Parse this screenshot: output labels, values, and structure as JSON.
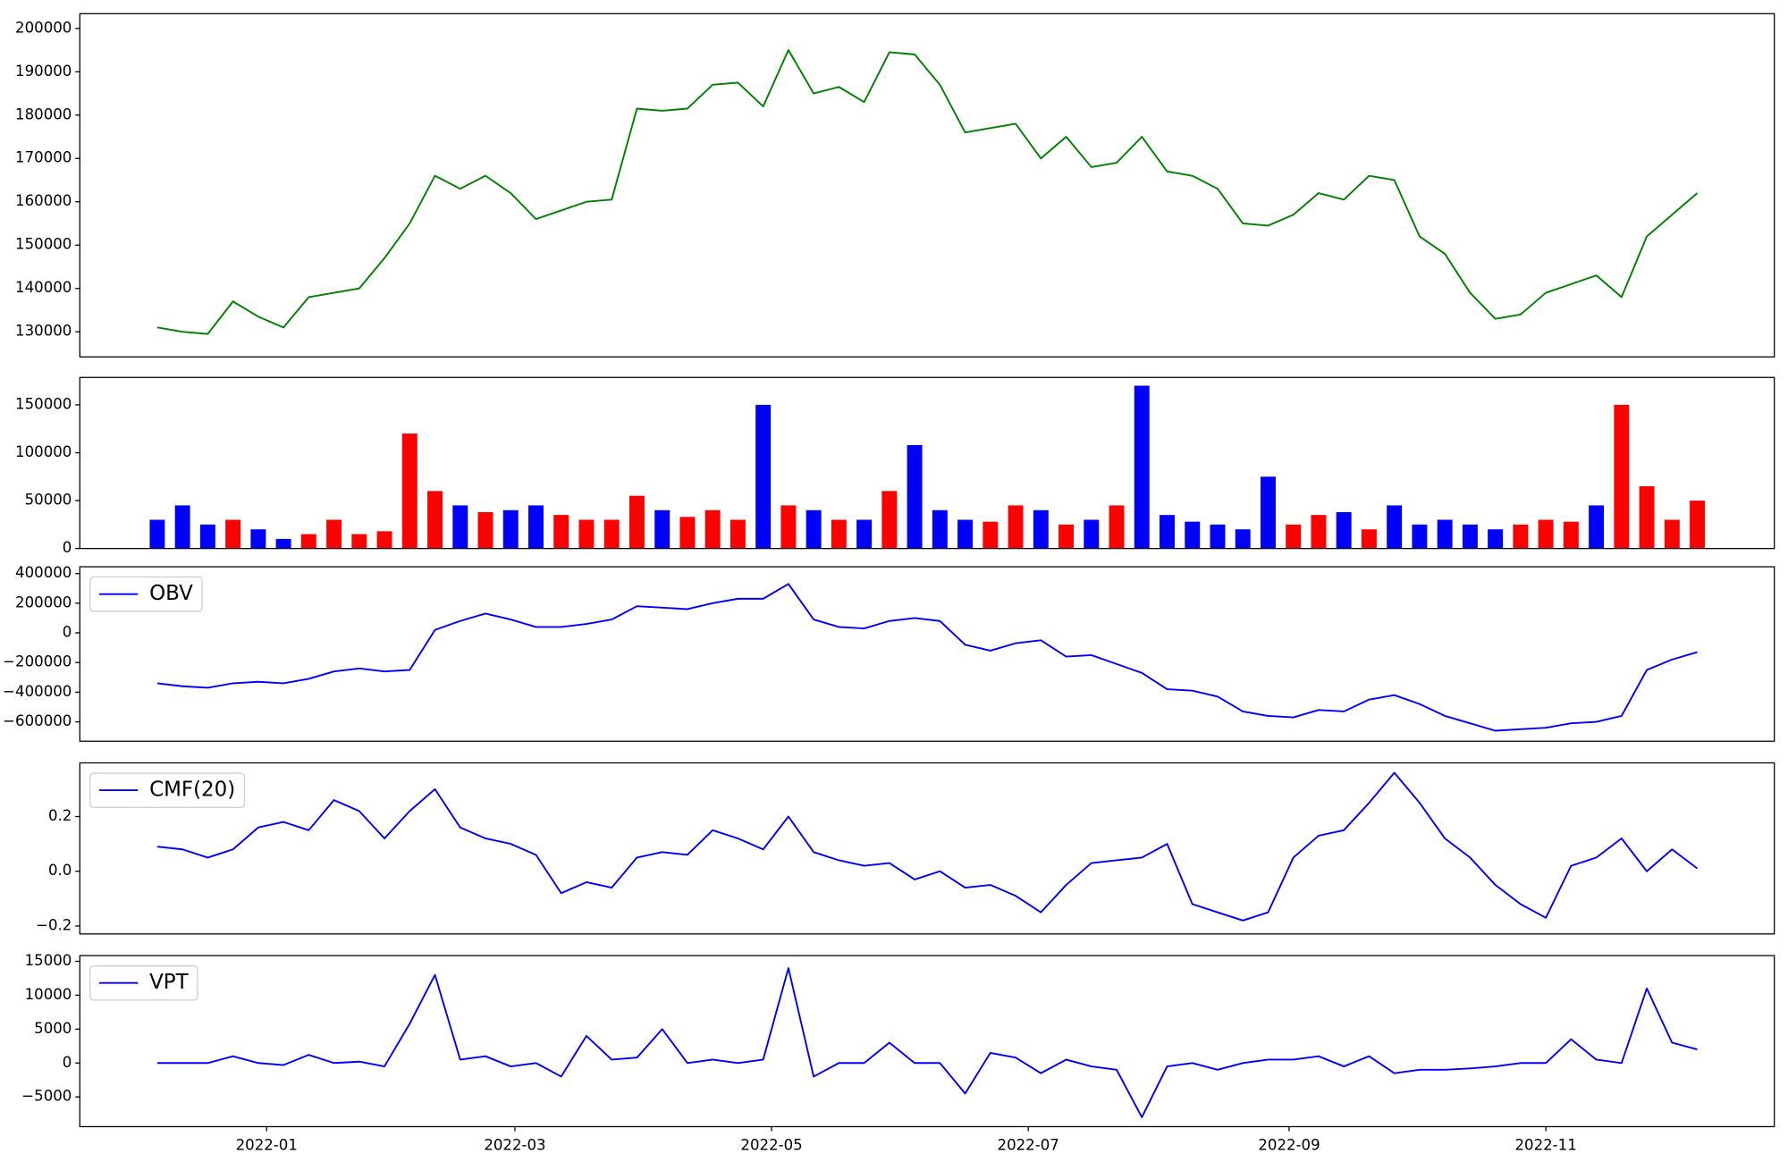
{
  "chart_data": [
    {
      "type": "line",
      "color": "green",
      "x": [
        0,
        6,
        12,
        18,
        24,
        30,
        36,
        42,
        48,
        54,
        60,
        66,
        72,
        78,
        84,
        90,
        96,
        102,
        108,
        114,
        120,
        126,
        132,
        138,
        144,
        150,
        156,
        162,
        168,
        174,
        180,
        186,
        192,
        198,
        204,
        210,
        216,
        222,
        228,
        234,
        240,
        246,
        252,
        258,
        264,
        270,
        276,
        282,
        288,
        294,
        300,
        306,
        312,
        318,
        324,
        330,
        336,
        342,
        348,
        354,
        360,
        366
      ],
      "values": [
        131000,
        130000,
        129500,
        137000,
        133500,
        131000,
        138000,
        139000,
        140000,
        147000,
        155000,
        166000,
        163000,
        166000,
        162000,
        156000,
        158000,
        160000,
        160500,
        181500,
        181000,
        181500,
        187000,
        187500,
        182000,
        195000,
        185000,
        186500,
        183000,
        194500,
        194000,
        187000,
        176000,
        177000,
        178000,
        170000,
        175000,
        168000,
        169000,
        175000,
        167000,
        166000,
        163000,
        155000,
        154500,
        157000,
        162000,
        160500,
        166000,
        165000,
        152000,
        148000,
        139000,
        133000,
        134000,
        139000,
        141000,
        143000,
        138000,
        152000,
        157000,
        162000
      ],
      "xlim": [
        -18.4,
        384.3
      ],
      "ylim": [
        124200,
        203400
      ],
      "yticks": [
        130000,
        140000,
        150000,
        160000,
        170000,
        180000,
        190000,
        200000
      ]
    },
    {
      "type": "bar",
      "x": [
        0,
        6,
        12,
        18,
        24,
        30,
        36,
        42,
        48,
        54,
        60,
        66,
        72,
        78,
        84,
        90,
        96,
        102,
        108,
        114,
        120,
        126,
        132,
        138,
        144,
        150,
        156,
        162,
        168,
        174,
        180,
        186,
        192,
        198,
        204,
        210,
        216,
        222,
        228,
        234,
        240,
        246,
        252,
        258,
        264,
        270,
        276,
        282,
        288,
        294,
        300,
        306,
        312,
        318,
        324,
        330,
        336,
        342,
        348,
        354,
        360,
        366
      ],
      "values": [
        30000,
        45000,
        25000,
        30000,
        20000,
        10000,
        15000,
        30000,
        15000,
        18000,
        120000,
        60000,
        45000,
        38000,
        40000,
        45000,
        35000,
        30000,
        30000,
        55000,
        40000,
        33000,
        40000,
        30000,
        150000,
        45000,
        40000,
        30000,
        30000,
        60000,
        108000,
        40000,
        30000,
        28000,
        45000,
        40000,
        25000,
        30000,
        45000,
        170000,
        35000,
        28000,
        25000,
        20000,
        75000,
        25000,
        35000,
        38000,
        20000,
        45000,
        25000,
        30000,
        25000,
        20000,
        25000,
        30000,
        28000,
        45000,
        150000,
        65000,
        30000,
        50000
      ],
      "colors": [
        "blue",
        "blue",
        "blue",
        "red",
        "blue",
        "blue",
        "red",
        "red",
        "red",
        "red",
        "red",
        "red",
        "blue",
        "red",
        "blue",
        "blue",
        "red",
        "red",
        "red",
        "red",
        "blue",
        "red",
        "red",
        "red",
        "blue",
        "red",
        "blue",
        "red",
        "blue",
        "red",
        "blue",
        "blue",
        "blue",
        "red",
        "red",
        "blue",
        "red",
        "blue",
        "red",
        "blue",
        "blue",
        "blue",
        "blue",
        "blue",
        "blue",
        "red",
        "red",
        "blue",
        "red",
        "blue",
        "blue",
        "blue",
        "blue",
        "blue",
        "red",
        "red",
        "red",
        "blue",
        "red",
        "red",
        "red",
        "red"
      ],
      "xlim": [
        -18.4,
        384.3
      ],
      "ylim": [
        0,
        178600
      ],
      "yticks": [
        0,
        50000,
        100000,
        150000
      ]
    },
    {
      "type": "line",
      "legend": "upper left",
      "x": [
        0,
        6,
        12,
        18,
        24,
        30,
        36,
        42,
        48,
        54,
        60,
        66,
        72,
        78,
        84,
        90,
        96,
        102,
        108,
        114,
        120,
        126,
        132,
        138,
        144,
        150,
        156,
        162,
        168,
        174,
        180,
        186,
        192,
        198,
        204,
        210,
        216,
        222,
        228,
        234,
        240,
        246,
        252,
        258,
        264,
        270,
        276,
        282,
        288,
        294,
        300,
        306,
        312,
        318,
        324,
        330,
        336,
        342,
        348,
        354,
        360,
        366
      ],
      "series": [
        {
          "name": "OBV",
          "color": "blue",
          "values": [
            -340000,
            -360000,
            -370000,
            -340000,
            -330000,
            -340000,
            -310000,
            -260000,
            -240000,
            -260000,
            -250000,
            20000,
            80000,
            130000,
            90000,
            40000,
            40000,
            60000,
            90000,
            180000,
            170000,
            160000,
            200000,
            230000,
            230000,
            330000,
            90000,
            40000,
            30000,
            80000,
            100000,
            80000,
            -80000,
            -120000,
            -70000,
            -50000,
            -160000,
            -150000,
            -210000,
            -270000,
            -380000,
            -390000,
            -430000,
            -530000,
            -560000,
            -570000,
            -520000,
            -530000,
            -450000,
            -420000,
            -480000,
            -560000,
            -610000,
            -660000,
            -650000,
            -640000,
            -610000,
            -600000,
            -560000,
            -250000,
            -180000,
            -130000
          ]
        }
      ],
      "xlim": [
        -18.4,
        384.3
      ],
      "ylim": [
        -730800,
        446000
      ],
      "yticks": [
        {
          "value": -600000,
          "label": "−600000"
        },
        {
          "value": -400000,
          "label": "−400000"
        },
        {
          "value": -200000,
          "label": "−200000"
        },
        0,
        200000,
        400000
      ]
    },
    {
      "type": "line",
      "legend": "upper left",
      "x": [
        0,
        6,
        12,
        18,
        24,
        30,
        36,
        42,
        48,
        54,
        60,
        66,
        72,
        78,
        84,
        90,
        96,
        102,
        108,
        114,
        120,
        126,
        132,
        138,
        144,
        150,
        156,
        162,
        168,
        174,
        180,
        186,
        192,
        198,
        204,
        210,
        216,
        222,
        228,
        234,
        240,
        246,
        252,
        258,
        264,
        270,
        276,
        282,
        288,
        294,
        300,
        306,
        312,
        318,
        324,
        330,
        336,
        342,
        348,
        354,
        360,
        366
      ],
      "series": [
        {
          "name": "CMF(20)",
          "color": "blue",
          "values": [
            0.09,
            0.08,
            0.05,
            0.08,
            0.16,
            0.18,
            0.15,
            0.26,
            0.22,
            0.12,
            0.22,
            0.3,
            0.16,
            0.12,
            0.1,
            0.06,
            -0.08,
            -0.04,
            -0.06,
            0.05,
            0.07,
            0.06,
            0.15,
            0.12,
            0.08,
            0.2,
            0.07,
            0.04,
            0.02,
            0.03,
            -0.03,
            0.0,
            -0.06,
            -0.05,
            -0.09,
            -0.15,
            -0.05,
            0.03,
            0.04,
            0.05,
            0.1,
            -0.12,
            -0.15,
            -0.18,
            -0.15,
            0.05,
            0.13,
            0.15,
            0.25,
            0.36,
            0.25,
            0.12,
            0.05,
            -0.05,
            -0.12,
            -0.17,
            0.02,
            0.05,
            0.12,
            0.0,
            0.08,
            0.01
          ]
        }
      ],
      "xlim": [
        -18.4,
        384.3
      ],
      "ylim": [
        -0.229,
        0.396
      ],
      "yticks": [
        {
          "value": -0.2,
          "label": "−0.2"
        },
        {
          "value": 0,
          "label": "0.0"
        },
        0.2
      ]
    },
    {
      "type": "line",
      "legend": "upper left",
      "x": [
        0,
        6,
        12,
        18,
        24,
        30,
        36,
        42,
        48,
        54,
        60,
        66,
        72,
        78,
        84,
        90,
        96,
        102,
        108,
        114,
        120,
        126,
        132,
        138,
        144,
        150,
        156,
        162,
        168,
        174,
        180,
        186,
        192,
        198,
        204,
        210,
        216,
        222,
        228,
        234,
        240,
        246,
        252,
        258,
        264,
        270,
        276,
        282,
        288,
        294,
        300,
        306,
        312,
        318,
        324,
        330,
        336,
        342,
        348,
        354,
        360,
        366
      ],
      "series": [
        {
          "name": "VPT",
          "color": "blue",
          "values": [
            0,
            0,
            0,
            1000,
            0,
            -300,
            1200,
            0,
            200,
            -500,
            5800,
            13000,
            500,
            1000,
            -500,
            0,
            -2000,
            4000,
            500,
            800,
            5000,
            0,
            500,
            0,
            500,
            14000,
            -2000,
            0,
            0,
            3000,
            0,
            0,
            -4500,
            1500,
            800,
            -1500,
            500,
            -500,
            -1000,
            -8000,
            -500,
            0,
            -1000,
            0,
            500,
            500,
            1000,
            -500,
            1000,
            -1500,
            -1000,
            -1000,
            -800,
            -500,
            0,
            0,
            3500,
            500,
            0,
            11000,
            3000,
            2000
          ]
        }
      ],
      "xlim": [
        -18.4,
        384.3
      ],
      "ylim": [
        -9384,
        15843
      ],
      "yticks": [
        {
          "value": -5000,
          "label": "−5000"
        },
        0,
        5000,
        10000,
        15000
      ],
      "xticks": [
        {
          "value": 26,
          "label": "2022-01"
        },
        {
          "value": 85,
          "label": "2022-03"
        },
        {
          "value": 146,
          "label": "2022-05"
        },
        {
          "value": 207,
          "label": "2022-07"
        },
        {
          "value": 269,
          "label": "2022-09"
        },
        {
          "value": 330,
          "label": "2022-11"
        }
      ]
    }
  ]
}
